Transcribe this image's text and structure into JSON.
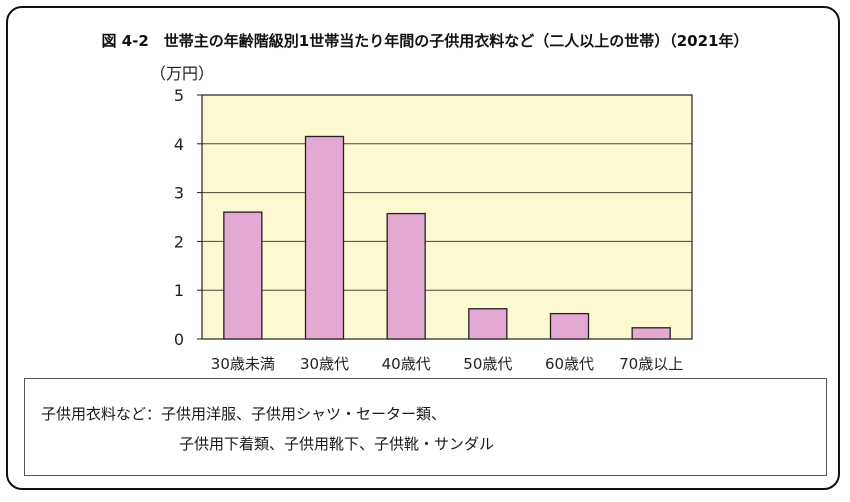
{
  "title": "図 4-2　世帯主の年齢階級別1世帯当たり年間の子供用衣料など（二人以上の世帯）（2021年）",
  "colors": {
    "plot_bg": "#fcf8cf",
    "bar_fill": "#e3a9d2",
    "bar_stroke": "#222222"
  },
  "chart_data": {
    "type": "bar",
    "title": "図 4-2　世帯主の年齢階級別1世帯当たり年間の子供用衣料など（二人以上の世帯）（2021年）",
    "ylabel": "（万円）",
    "xlabel": "",
    "categories": [
      "30歳未満",
      "30歳代",
      "40歳代",
      "50歳代",
      "60歳代",
      "70歳以上"
    ],
    "values": [
      2.6,
      4.15,
      2.57,
      0.62,
      0.52,
      0.23
    ],
    "ylim": [
      0,
      5
    ],
    "yticks": [
      "0",
      "1",
      "2",
      "3",
      "4",
      "5"
    ],
    "grid": true
  },
  "note": {
    "line1": "子供用衣料など：子供用洋服、子供用シャツ・セーター類、",
    "line2": "子供用下着類、子供用靴下、子供靴・サンダル"
  }
}
